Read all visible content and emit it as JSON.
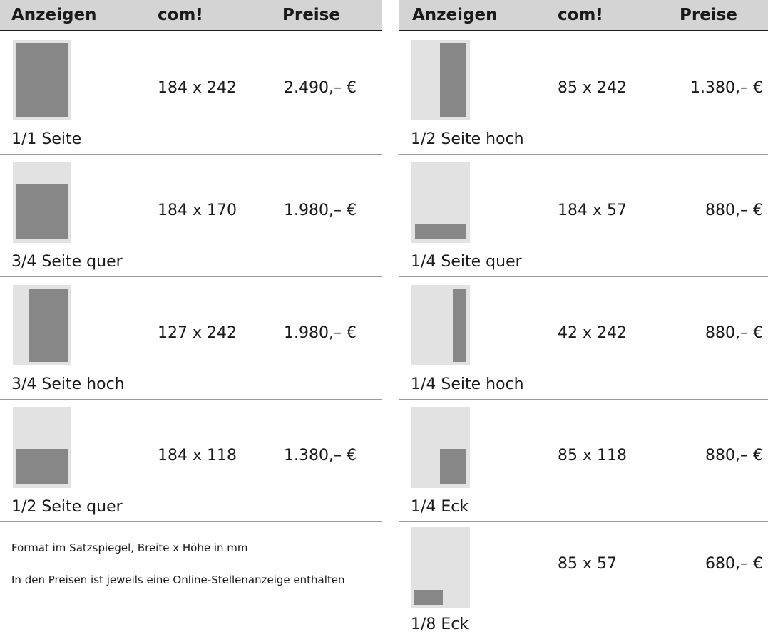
{
  "left": {
    "header": {
      "col1": "Anzeigen",
      "col2": "com!",
      "col3": "Preise"
    },
    "rows": [
      {
        "name": "1/1 Seite",
        "size": "184 x 242",
        "price": "2.490,– €"
      },
      {
        "name": "3/4 Seite quer",
        "size": "184 x 170",
        "price": "1.980,– €"
      },
      {
        "name": "3/4 Seite hoch",
        "size": "127 x 242",
        "price": "1.980,– €"
      },
      {
        "name": "1/2 Seite quer",
        "size": "184 x 118",
        "price": "1.380,– €"
      }
    ],
    "notes": [
      "Format im Satzspiegel, Breite x Höhe in mm",
      "In den Preisen ist jeweils eine Online-Stellenanzeige enthalten"
    ]
  },
  "right": {
    "header": {
      "col1": "Anzeigen",
      "col2": "com!",
      "col3": "Preise"
    },
    "rows": [
      {
        "name": "1/2 Seite hoch",
        "size": "85 x 242",
        "price": "1.380,– €"
      },
      {
        "name": "1/4 Seite quer",
        "size": "184 x 57",
        "price": "880,– €"
      },
      {
        "name": "1/4 Seite hoch",
        "size": "42 x 242",
        "price": "880,– €"
      },
      {
        "name": "1/4 Eck",
        "size": "85 x 118",
        "price": "880,– €"
      },
      {
        "name": "1/8 Eck",
        "size": "85 x 57",
        "price": "680,– €"
      }
    ]
  },
  "colors": {
    "header_bg": "#d4d4d4",
    "thumb_bg": "#e2e2e2",
    "thumb_fill": "#878787"
  }
}
